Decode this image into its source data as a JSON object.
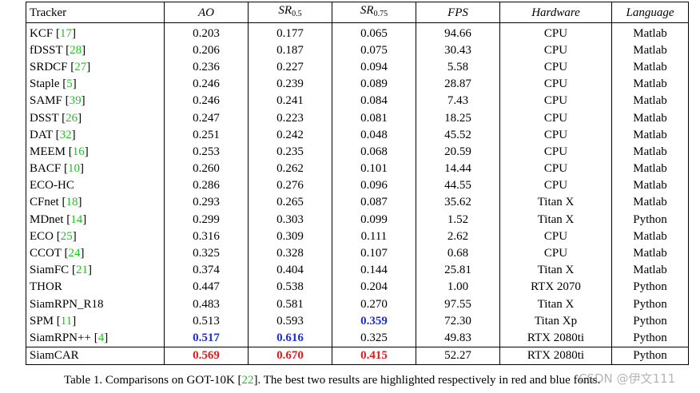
{
  "table": {
    "headers": {
      "tracker": "Tracker",
      "ao": "AO",
      "sr05_main": "SR",
      "sr05_sub": "0.5",
      "sr075_main": "SR",
      "sr075_sub": "0.75",
      "fps": "FPS",
      "hardware": "Hardware",
      "language": "Language"
    },
    "rows": [
      {
        "name": "KCF",
        "ref": "17",
        "ao": "0.203",
        "sr05": "0.177",
        "sr075": "0.065",
        "fps": "94.66",
        "hardware": "CPU",
        "language": "Matlab"
      },
      {
        "name": "fDSST",
        "ref": "28",
        "ao": "0.206",
        "sr05": "0.187",
        "sr075": "0.075",
        "fps": "30.43",
        "hardware": "CPU",
        "language": "Matlab"
      },
      {
        "name": "SRDCF",
        "ref": "27",
        "ao": "0.236",
        "sr05": "0.227",
        "sr075": "0.094",
        "fps": "5.58",
        "hardware": "CPU",
        "language": "Matlab"
      },
      {
        "name": "Staple",
        "ref": "5",
        "ao": "0.246",
        "sr05": "0.239",
        "sr075": "0.089",
        "fps": "28.87",
        "hardware": "CPU",
        "language": "Matlab"
      },
      {
        "name": "SAMF",
        "ref": "39",
        "ao": "0.246",
        "sr05": "0.241",
        "sr075": "0.084",
        "fps": "7.43",
        "hardware": "CPU",
        "language": "Matlab"
      },
      {
        "name": "DSST",
        "ref": "26",
        "ao": "0.247",
        "sr05": "0.223",
        "sr075": "0.081",
        "fps": "18.25",
        "hardware": "CPU",
        "language": "Matlab"
      },
      {
        "name": "DAT",
        "ref": "32",
        "ao": "0.251",
        "sr05": "0.242",
        "sr075": "0.048",
        "fps": "45.52",
        "hardware": "CPU",
        "language": "Matlab"
      },
      {
        "name": "MEEM",
        "ref": "16",
        "ao": "0.253",
        "sr05": "0.235",
        "sr075": "0.068",
        "fps": "20.59",
        "hardware": "CPU",
        "language": "Matlab"
      },
      {
        "name": "BACF",
        "ref": "10",
        "ao": "0.260",
        "sr05": "0.262",
        "sr075": "0.101",
        "fps": "14.44",
        "hardware": "CPU",
        "language": "Matlab"
      },
      {
        "name": "ECO-HC",
        "ref": "",
        "ao": "0.286",
        "sr05": "0.276",
        "sr075": "0.096",
        "fps": "44.55",
        "hardware": "CPU",
        "language": "Matlab"
      },
      {
        "name": "CFnet",
        "ref": "18",
        "ao": "0.293",
        "sr05": "0.265",
        "sr075": "0.087",
        "fps": "35.62",
        "hardware": "Titan X",
        "language": "Matlab"
      },
      {
        "name": "MDnet",
        "ref": "14",
        "ao": "0.299",
        "sr05": "0.303",
        "sr075": "0.099",
        "fps": "1.52",
        "hardware": "Titan X",
        "language": "Python"
      },
      {
        "name": "ECO",
        "ref": "25",
        "ao": "0.316",
        "sr05": "0.309",
        "sr075": "0.111",
        "fps": "2.62",
        "hardware": "CPU",
        "language": "Matlab"
      },
      {
        "name": "CCOT",
        "ref": "24",
        "ao": "0.325",
        "sr05": "0.328",
        "sr075": "0.107",
        "fps": "0.68",
        "hardware": "CPU",
        "language": "Matlab"
      },
      {
        "name": "SiamFC",
        "ref": "21",
        "ao": "0.374",
        "sr05": "0.404",
        "sr075": "0.144",
        "fps": "25.81",
        "hardware": "Titan X",
        "language": "Matlab"
      },
      {
        "name": "THOR",
        "ref": "",
        "ao": "0.447",
        "sr05": "0.538",
        "sr075": "0.204",
        "fps": "1.00",
        "hardware": "RTX 2070",
        "language": "Python"
      },
      {
        "name": "SiamRPN_R18",
        "ref": "",
        "ao": "0.483",
        "sr05": "0.581",
        "sr075": "0.270",
        "fps": "97.55",
        "hardware": "Titan X",
        "language": "Python"
      },
      {
        "name": "SPM",
        "ref": "11",
        "ao": "0.513",
        "sr05": "0.593",
        "sr075": "0.359",
        "sr075_rank": "second",
        "fps": "72.30",
        "hardware": "Titan Xp",
        "language": "Python"
      },
      {
        "name": "SiamRPN++",
        "ref": "4",
        "ao": "0.517",
        "ao_rank": "second",
        "sr05": "0.616",
        "sr05_rank": "second",
        "sr075": "0.325",
        "fps": "49.83",
        "hardware": "RTX 2080ti",
        "language": "Python"
      },
      {
        "name": "SiamCAR",
        "ref": "",
        "ao": "0.569",
        "ao_rank": "best",
        "sr05": "0.670",
        "sr05_rank": "best",
        "sr075": "0.415",
        "sr075_rank": "best",
        "fps": "52.27",
        "hardware": "RTX 2080ti",
        "language": "Python",
        "separated": true
      }
    ]
  },
  "caption": {
    "prefix": "Table 1. Comparisons on GOT-10K [",
    "ref": "22",
    "suffix": "]. The best two results are highlighted respectively in red and blue fonts."
  },
  "watermark": "CSDN @伊文111",
  "colors": {
    "best": "#e11b1b",
    "second": "#1a2fd6",
    "reference": "#22c022"
  }
}
